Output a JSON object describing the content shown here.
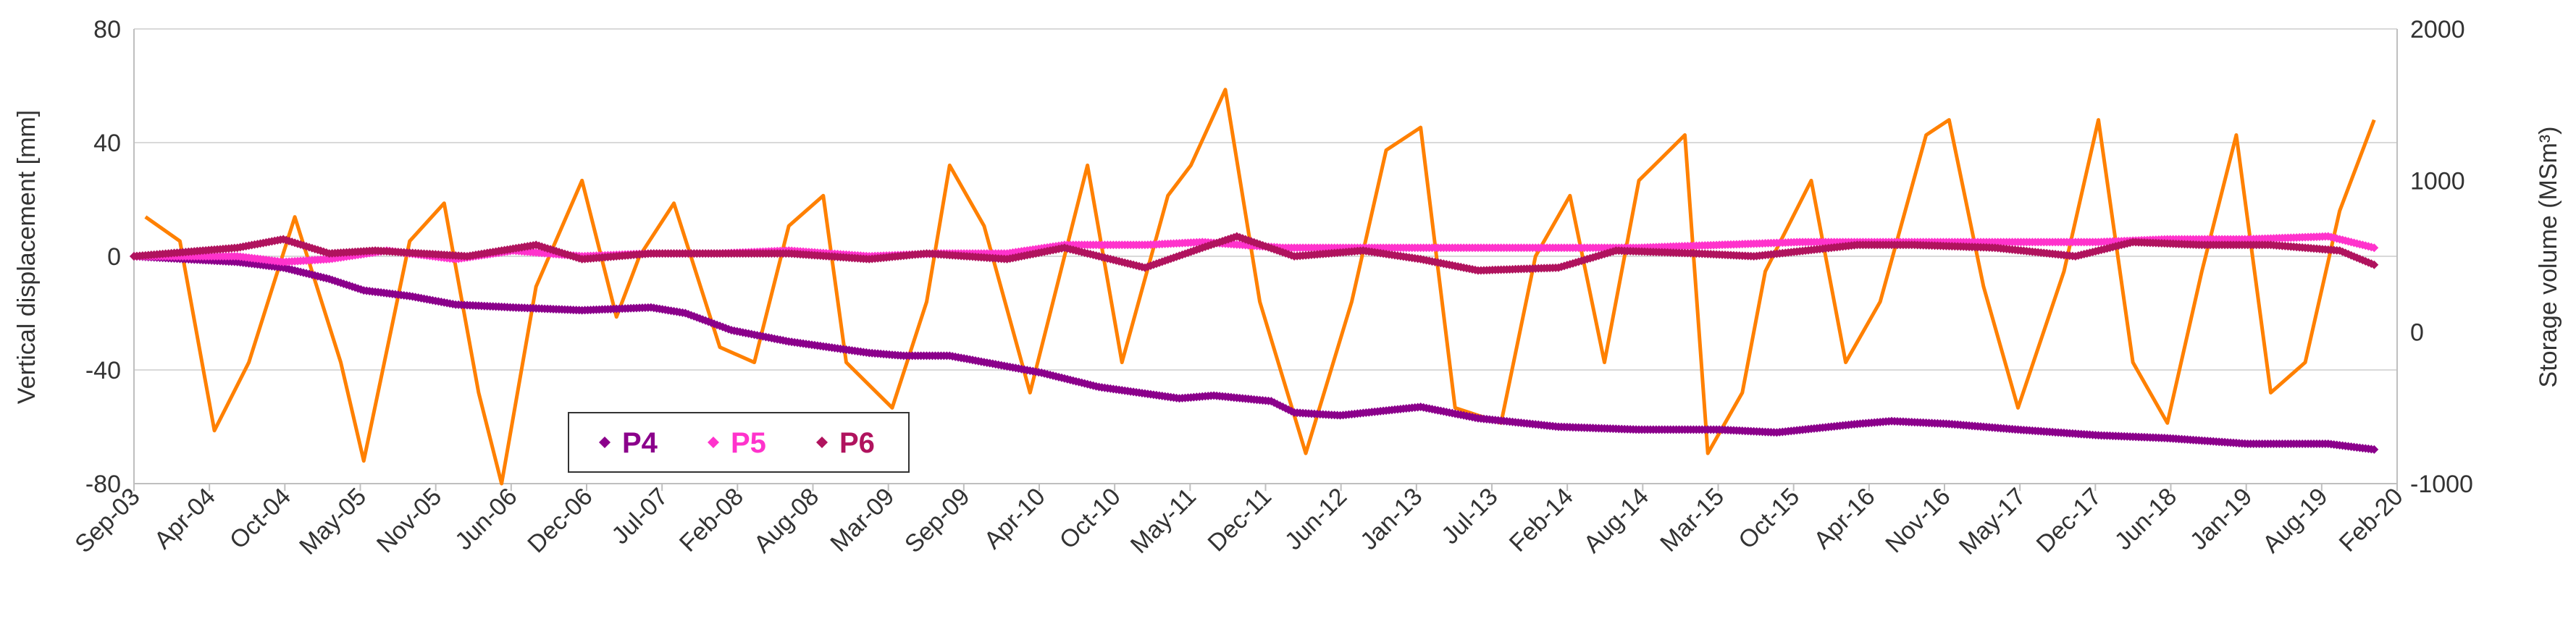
{
  "chart_data": {
    "type": "line",
    "title": "",
    "xlabel": "",
    "ylabel_left": "Vertical displacement [mm]",
    "ylabel_right": "Storage volume (MSm³)",
    "ylim_left": [
      -80,
      80
    ],
    "ylim_right": [
      -1000,
      2000
    ],
    "xlim": [
      "2003-09",
      "2020-02"
    ],
    "grid": true,
    "legend_placement": "bottom-left",
    "x_ticks": [
      "Sep-03",
      "Apr-04",
      "Oct-04",
      "May-05",
      "Nov-05",
      "Jun-06",
      "Dec-06",
      "Jul-07",
      "Feb-08",
      "Aug-08",
      "Mar-09",
      "Sep-09",
      "Apr-10",
      "Oct-10",
      "May-11",
      "Dec-11",
      "Jun-12",
      "Jan-13",
      "Jul-13",
      "Feb-14",
      "Aug-14",
      "Mar-15",
      "Oct-15",
      "Apr-16",
      "Nov-16",
      "May-17",
      "Dec-17",
      "Jun-18",
      "Jan-19",
      "Aug-19",
      "Feb-20"
    ],
    "y_ticks_left": [
      "80",
      "40",
      "0",
      "-40",
      "-80"
    ],
    "y_ticks_right": [
      "2000",
      "1000",
      "0",
      "-1000"
    ],
    "series": [
      {
        "name": "P4",
        "axis": "left",
        "style": "markers",
        "color": "#8b008b",
        "x": [
          "2003-09",
          "2004-06",
          "2004-10",
          "2005-02",
          "2005-05",
          "2005-09",
          "2006-01",
          "2006-06",
          "2006-12",
          "2007-06",
          "2007-09",
          "2008-01",
          "2008-06",
          "2009-01",
          "2009-04",
          "2009-08",
          "2010-04",
          "2010-09",
          "2011-04",
          "2011-07",
          "2011-12",
          "2012-02",
          "2012-06",
          "2013-01",
          "2013-06",
          "2014-01",
          "2014-08",
          "2015-03",
          "2015-08",
          "2016-03",
          "2016-06",
          "2016-11",
          "2017-05",
          "2017-12",
          "2018-06",
          "2019-01",
          "2019-08",
          "2019-12"
        ],
        "values": [
          0,
          -2,
          -4,
          -8,
          -12,
          -14,
          -17,
          -18,
          -19,
          -18,
          -20,
          -26,
          -30,
          -34,
          -35,
          -35,
          -41,
          -46,
          -50,
          -49,
          -51,
          -55,
          -56,
          -53,
          -57,
          -60,
          -61,
          -61,
          -62,
          -59,
          -58,
          -59,
          -61,
          -63,
          -64,
          -66,
          -66,
          -68
        ]
      },
      {
        "name": "P5",
        "axis": "left",
        "style": "markers",
        "color": "#ff33cc",
        "x": [
          "2003-09",
          "2004-06",
          "2004-10",
          "2005-02",
          "2005-07",
          "2006-01",
          "2006-06",
          "2006-12",
          "2007-06",
          "2007-12",
          "2008-06",
          "2009-01",
          "2009-07",
          "2010-01",
          "2010-06",
          "2011-01",
          "2011-06",
          "2012-01",
          "2012-06",
          "2013-01",
          "2013-06",
          "2014-01",
          "2014-08",
          "2015-03",
          "2015-10",
          "2016-04",
          "2016-11",
          "2017-05",
          "2017-12",
          "2018-06",
          "2019-01",
          "2019-08",
          "2019-12"
        ],
        "values": [
          0,
          0,
          -2,
          -1,
          2,
          -1,
          2,
          0,
          1,
          1,
          2,
          0,
          1,
          1,
          4,
          4,
          5,
          3,
          3,
          3,
          3,
          3,
          3,
          4,
          5,
          5,
          5,
          5,
          5,
          6,
          6,
          7,
          3
        ]
      },
      {
        "name": "P6",
        "axis": "left",
        "style": "markers",
        "color": "#b0135e",
        "x": [
          "2003-09",
          "2004-06",
          "2004-10",
          "2005-02",
          "2005-06",
          "2005-10",
          "2006-02",
          "2006-08",
          "2006-12",
          "2007-06",
          "2007-12",
          "2008-06",
          "2009-01",
          "2009-06",
          "2010-01",
          "2010-06",
          "2011-01",
          "2011-06",
          "2011-09",
          "2012-02",
          "2012-08",
          "2013-01",
          "2013-06",
          "2014-01",
          "2014-06",
          "2015-01",
          "2015-06",
          "2016-03",
          "2016-08",
          "2017-03",
          "2017-10",
          "2018-03",
          "2018-09",
          "2019-03",
          "2019-09",
          "2019-12"
        ],
        "values": [
          0,
          3,
          6,
          1,
          2,
          1,
          0,
          4,
          -1,
          1,
          1,
          1,
          -1,
          1,
          -1,
          3,
          -4,
          3,
          7,
          0,
          2,
          -1,
          -5,
          -4,
          2,
          1,
          0,
          4,
          4,
          3,
          0,
          5,
          4,
          4,
          2,
          -3
        ]
      },
      {
        "name": "Storage volume",
        "axis": "right",
        "style": "line",
        "color": "#ff8000",
        "x": [
          "2003-10",
          "2004-01",
          "2004-04",
          "2004-07",
          "2004-11",
          "2005-03",
          "2005-05",
          "2005-09",
          "2005-12",
          "2006-03",
          "2006-05",
          "2006-08",
          "2006-12",
          "2007-03",
          "2007-05",
          "2007-08",
          "2007-12",
          "2008-03",
          "2008-06",
          "2008-09",
          "2008-11",
          "2009-03",
          "2009-06",
          "2009-08",
          "2009-11",
          "2010-03",
          "2010-05",
          "2010-08",
          "2010-11",
          "2011-03",
          "2011-05",
          "2011-08",
          "2011-11",
          "2012-03",
          "2012-07",
          "2012-10",
          "2013-01",
          "2013-04",
          "2013-08",
          "2013-11",
          "2014-02",
          "2014-05",
          "2014-08",
          "2014-12",
          "2015-02",
          "2015-05",
          "2015-07",
          "2015-11",
          "2016-02",
          "2016-05",
          "2016-09",
          "2016-11",
          "2017-02",
          "2017-05",
          "2017-09",
          "2017-12",
          "2018-03",
          "2018-06",
          "2018-09",
          "2018-12",
          "2019-03",
          "2019-06",
          "2019-09",
          "2019-12"
        ],
        "values": [
          760,
          600,
          -650,
          -200,
          760,
          -200,
          -850,
          600,
          850,
          -400,
          -1000,
          300,
          1000,
          100,
          500,
          850,
          -100,
          -200,
          700,
          900,
          -200,
          -500,
          200,
          1100,
          700,
          -400,
          200,
          1100,
          -200,
          900,
          1100,
          1600,
          200,
          -800,
          200,
          1200,
          1350,
          -500,
          -600,
          500,
          900,
          -200,
          1000,
          1300,
          -800,
          -400,
          400,
          1000,
          -200,
          200,
          1300,
          1400,
          300,
          -500,
          400,
          1400,
          -200,
          -600,
          400,
          1300,
          -400,
          -200,
          800,
          1400
        ]
      }
    ]
  }
}
